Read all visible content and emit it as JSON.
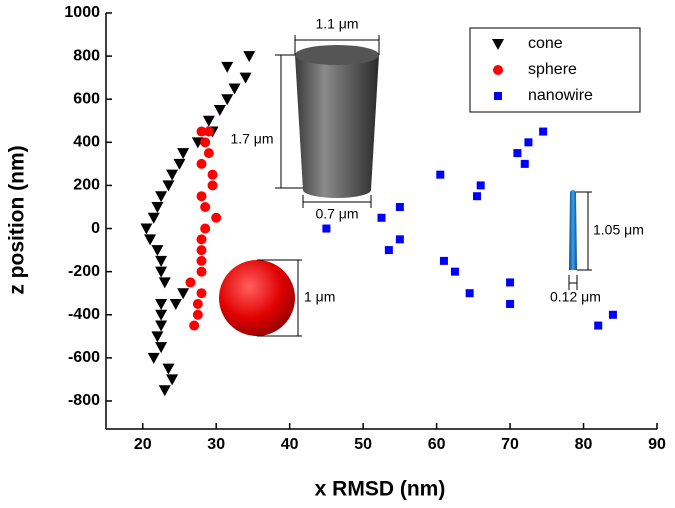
{
  "chart_data": {
    "type": "scatter",
    "x_label": "x RMSD (nm)",
    "y_label": "z position (nm)",
    "xlim": [
      15,
      90
    ],
    "xticks": [
      20,
      30,
      40,
      50,
      60,
      70,
      80,
      90
    ],
    "ylim": [
      -930,
      1000
    ],
    "yticks": [
      -800,
      -600,
      -400,
      -200,
      0,
      200,
      400,
      600,
      800,
      1000
    ],
    "legend": "upper right",
    "annotations": [
      "1.1 μm",
      "1.7 μm",
      "0.7 μm",
      "1 μm",
      "1.05 μm",
      "0.12 μm"
    ],
    "series": [
      {
        "name": "cone",
        "marker": "triangle-down",
        "color": "#000000",
        "x": [
          34.5,
          31.5,
          34,
          32.5,
          31.5,
          30.5,
          29,
          29.5,
          27.5,
          25.5,
          25,
          24,
          23.5,
          22.5,
          22,
          21.5,
          20.5,
          21,
          22,
          22.5,
          22.5,
          23,
          25.5,
          24.5,
          22.5,
          22.5,
          22.5,
          22,
          22.5,
          21.5,
          23.5,
          24,
          23
        ],
        "y": [
          800,
          750,
          700,
          650,
          600,
          550,
          500,
          450,
          400,
          350,
          300,
          250,
          200,
          150,
          100,
          50,
          0,
          -50,
          -100,
          -150,
          -200,
          -250,
          -300,
          -350,
          -350,
          -400,
          -450,
          -500,
          -550,
          -600,
          -650,
          -700,
          -750
        ]
      },
      {
        "name": "sphere",
        "marker": "circle",
        "color": "#ff0000",
        "x": [
          28,
          29,
          28.5,
          29,
          28,
          29.5,
          29.5,
          28,
          28.5,
          30,
          28.5,
          28,
          28,
          28,
          28,
          26.5,
          28,
          27.5,
          27.5,
          27
        ],
        "y": [
          450,
          450,
          400,
          350,
          300,
          250,
          200,
          150,
          100,
          50,
          0,
          -50,
          -100,
          -150,
          -200,
          -250,
          -300,
          -350,
          -400,
          -450
        ]
      },
      {
        "name": "nanowire",
        "marker": "square",
        "color": "#0000ff",
        "x": [
          45,
          52.5,
          53.5,
          55,
          55,
          60.5,
          61,
          62.5,
          64.5,
          65.5,
          66,
          70,
          70,
          71,
          72,
          72.5,
          74.5,
          82,
          84
        ],
        "y": [
          0,
          50,
          -100,
          100,
          -50,
          250,
          -150,
          -200,
          -300,
          150,
          200,
          -250,
          -350,
          350,
          300,
          400,
          450,
          -450,
          -400
        ]
      }
    ]
  }
}
